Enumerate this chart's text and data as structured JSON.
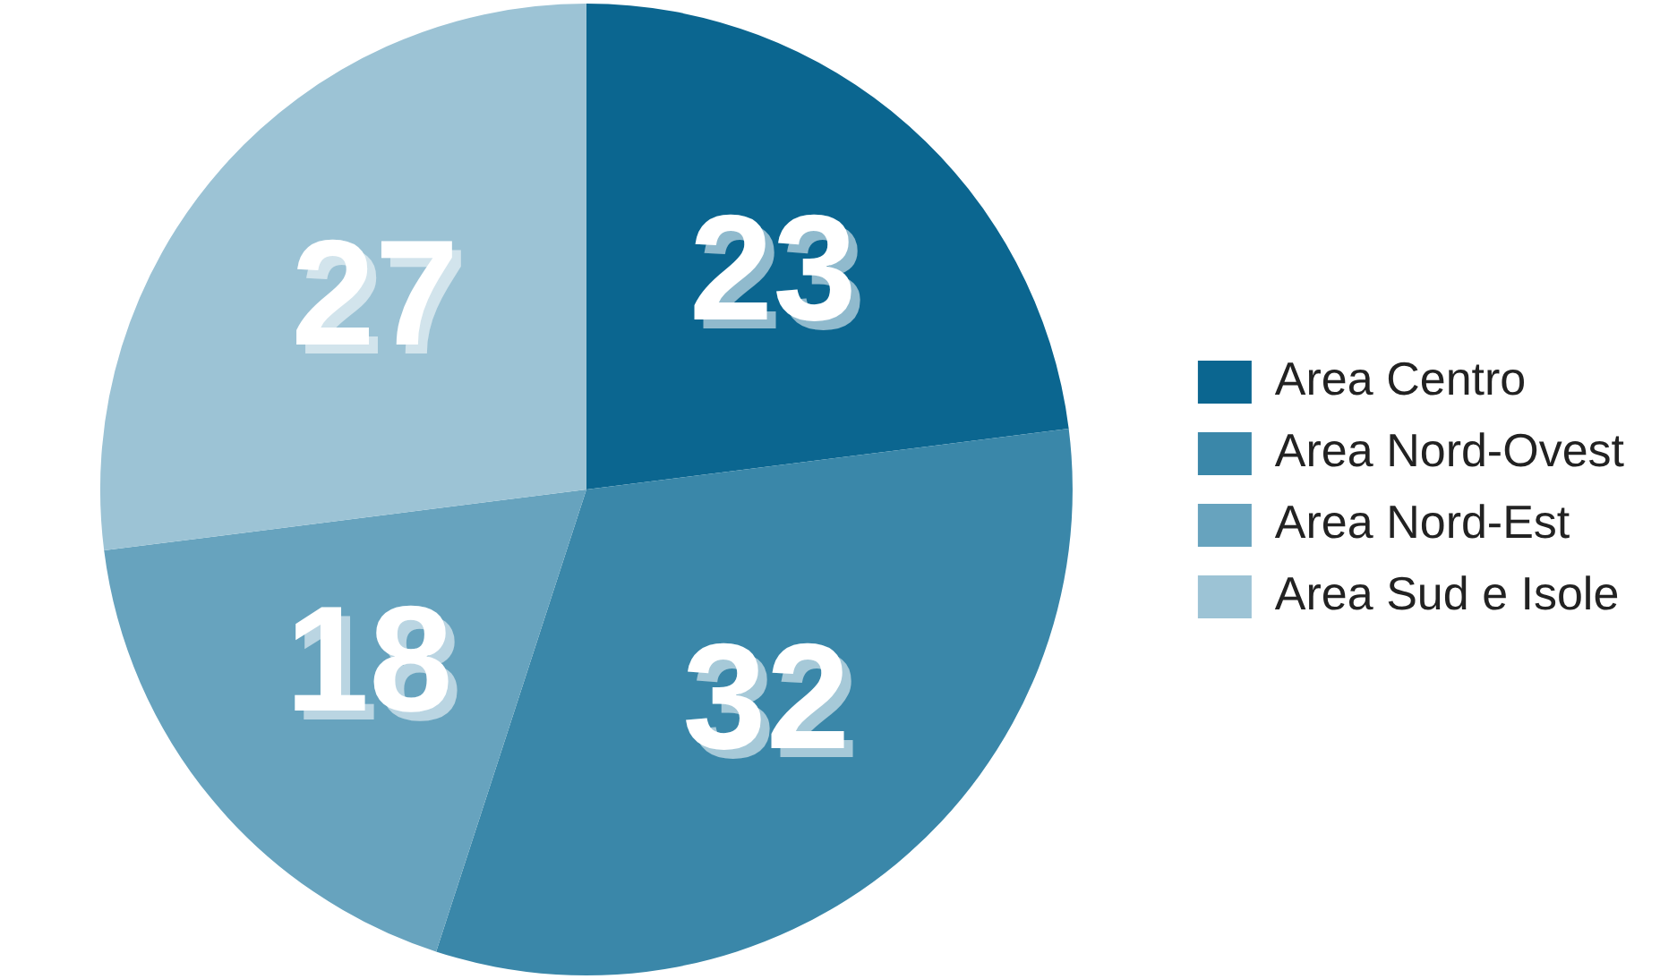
{
  "chart_data": {
    "type": "pie",
    "categories": [
      "Area Centro",
      "Area Nord-Ovest",
      "Area Nord-Est",
      "Area Sud e Isole"
    ],
    "values": [
      23,
      32,
      18,
      27
    ],
    "colors": [
      "#0b6690",
      "#3a87a9",
      "#67a3be",
      "#9cc3d5"
    ],
    "data_labels": true,
    "legend": "right"
  }
}
